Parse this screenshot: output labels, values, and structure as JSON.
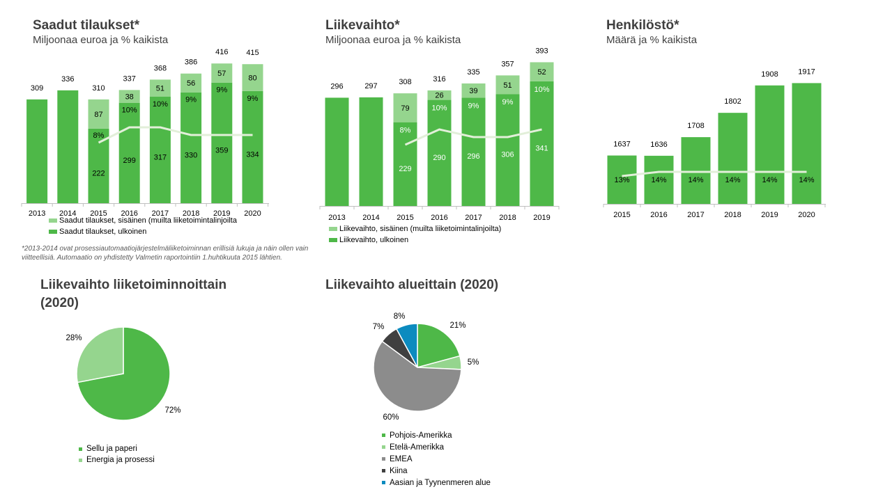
{
  "colors": {
    "external": "#4eb848",
    "internal": "#95d58e",
    "line": "#e2efd9",
    "axis": "#bfbfbf",
    "pie_green": "#4eb848",
    "pie_light": "#95d58e",
    "pie_gray": "#8c8c8c",
    "pie_dark": "#404040",
    "pie_blue": "#0c8bbf"
  },
  "sections": {
    "orders": {
      "title": "Saadut tilaukset*",
      "subtitle": "Miljoonaa euroa ja % kaikista"
    },
    "sales": {
      "title": "Liikevaihto*",
      "subtitle": "Miljoonaa euroa ja % kaikista"
    },
    "personnel": {
      "title": "Henkilöstö*",
      "subtitle": "Määrä ja % kaikista"
    },
    "footnote": "*2013-2014 ovat prosessiautomaatiojärjestelmäliiketoiminnan erillisiä lukuja ja näin ollen vain viitteellisiä. Automaatio on yhdistetty Valmetin raportointiin 1.huhtikuuta 2015 lähtien.",
    "pie_business": {
      "title": "Liikevaihto liiketoiminnoittain  (2020)"
    },
    "pie_region": {
      "title": "Liikevaihto alueittain  (2020)"
    }
  },
  "chart_data": [
    {
      "type": "bar",
      "title": "Saadut tilaukset*",
      "subtitle": "Miljoonaa euroa ja % kaikista",
      "categories": [
        "2013",
        "2014",
        "2015",
        "2016",
        "2017",
        "2018",
        "2019",
        "2020"
      ],
      "totals": [
        "309",
        "336",
        "310",
        "337",
        "368",
        "386",
        "416",
        "415"
      ],
      "series": [
        {
          "name": "Saadut tilaukset, ulkoinen",
          "values": [
            309,
            336,
            222,
            299,
            317,
            330,
            359,
            334
          ]
        },
        {
          "name": "Saadut tilaukset, sisäinen (muilta liiketoimintalinjoilta",
          "values": [
            0,
            0,
            87,
            38,
            51,
            56,
            57,
            80
          ]
        }
      ],
      "ext_labels": [
        "",
        "",
        "222",
        "299",
        "317",
        "330",
        "359",
        "334"
      ],
      "int_labels": [
        "",
        "",
        "87",
        "38",
        "51",
        "56",
        "57",
        "80"
      ],
      "share_pct": [
        null,
        null,
        8,
        10,
        10,
        9,
        9,
        9
      ],
      "share_labels": [
        "",
        "",
        "8%",
        "10%",
        "10%",
        "9%",
        "9%",
        "9%"
      ],
      "ylim": [
        0,
        460
      ]
    },
    {
      "type": "bar",
      "title": "Liikevaihto*",
      "subtitle": "Miljoonaa euroa ja % kaikista",
      "categories": [
        "2013",
        "2014",
        "2015",
        "2016",
        "2017",
        "2018",
        "2019"
      ],
      "totals": [
        "296",
        "297",
        "308",
        "316",
        "335",
        "357",
        "393"
      ],
      "series": [
        {
          "name": "Liikevaihto, ulkoinen",
          "values": [
            296,
            297,
            229,
            290,
            296,
            306,
            341
          ]
        },
        {
          "name": "Liikevaihto, sisäinen (muilta liiketoimintalinjoilta)",
          "values": [
            0,
            0,
            79,
            26,
            39,
            51,
            52
          ]
        }
      ],
      "ext_labels": [
        "",
        "",
        "229",
        "290",
        "296",
        "306",
        "341"
      ],
      "int_labels": [
        "",
        "",
        "79",
        "26",
        "39",
        "51",
        "52"
      ],
      "share_pct": [
        null,
        null,
        8,
        10,
        9,
        9,
        10
      ],
      "share_labels": [
        "",
        "",
        "8%",
        "10%",
        "9%",
        "9%",
        "10%"
      ],
      "ylim": [
        0,
        430
      ]
    },
    {
      "type": "bar",
      "title": "Henkilöstö*",
      "subtitle": "Määrä ja % kaikista",
      "categories": [
        "2015",
        "2016",
        "2017",
        "2018",
        "2019",
        "2020"
      ],
      "totals": [
        "1637",
        "1636",
        "1708",
        "1802",
        "1908",
        "1917"
      ],
      "series": [
        {
          "values": [
            1637,
            1636,
            1708,
            1802,
            1908,
            1917
          ]
        }
      ],
      "share_pct": [
        13,
        14,
        14,
        14,
        14,
        14
      ],
      "share_labels": [
        "13%",
        "14%",
        "14%",
        "14%",
        "14%",
        "14%"
      ],
      "ylim": [
        1450,
        1980
      ]
    },
    {
      "type": "pie",
      "title": "Liikevaihto liiketoiminnoittain  (2020)",
      "labels": [
        "Sellu ja paperi",
        "Energia ja prosessi"
      ],
      "values": [
        72,
        28
      ],
      "value_labels": [
        "72%",
        "28%"
      ]
    },
    {
      "type": "pie",
      "title": "Liikevaihto alueittain  (2020)",
      "labels": [
        "Pohjois-Amerikka",
        "Etelä-Amerikka",
        "EMEA",
        "Kiina",
        "Aasian ja Tyynenmeren alue"
      ],
      "values": [
        21,
        5,
        60,
        7,
        8
      ],
      "value_labels": [
        "21%",
        "5%",
        "60%",
        "7%",
        "8%"
      ]
    }
  ]
}
